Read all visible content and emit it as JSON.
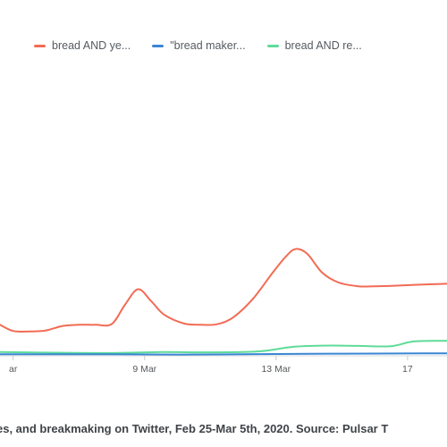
{
  "legend": [
    {
      "label": "bread AND ye...",
      "color": "#f26b54"
    },
    {
      "label": "\"bread maker...",
      "color": "#3a86d4"
    },
    {
      "label": "bread AND re...",
      "color": "#5fdb98"
    }
  ],
  "caption": "es, and breakmaking on Twitter, Feb 25-Mar 5th, 2020. Source: Pulsar T",
  "chart_data": {
    "type": "line",
    "x_tick_labels": [
      "ar",
      "9 Mar",
      "13 Mar",
      "17"
    ],
    "x_range_days": [
      4.6,
      18.2
    ],
    "x_ticks_days": [
      5,
      9,
      13,
      17
    ],
    "ylim": [
      0,
      100
    ],
    "grid": false,
    "legend_position": "top-left",
    "series": [
      {
        "name": "bread AND ye...",
        "color": "#f26b54",
        "points": [
          [
            4.6,
            12.5
          ],
          [
            5.0,
            10.0
          ],
          [
            5.5,
            9.8
          ],
          [
            6.0,
            10.2
          ],
          [
            6.5,
            12.0
          ],
          [
            7.0,
            12.5
          ],
          [
            7.5,
            12.5
          ],
          [
            8.0,
            12.8
          ],
          [
            8.4,
            20.5
          ],
          [
            8.8,
            26.8
          ],
          [
            9.2,
            22.0
          ],
          [
            9.6,
            16.5
          ],
          [
            10.2,
            13.0
          ],
          [
            10.7,
            12.5
          ],
          [
            11.2,
            12.7
          ],
          [
            11.7,
            15.5
          ],
          [
            12.3,
            23.0
          ],
          [
            12.9,
            33.5
          ],
          [
            13.3,
            40.0
          ],
          [
            13.6,
            43.0
          ],
          [
            13.95,
            41.0
          ],
          [
            14.4,
            33.5
          ],
          [
            14.9,
            29.5
          ],
          [
            15.5,
            28.0
          ],
          [
            16.0,
            28.0
          ],
          [
            16.6,
            28.2
          ],
          [
            17.3,
            28.6
          ],
          [
            18.2,
            29.0
          ]
        ]
      },
      {
        "name": "\"bread maker...",
        "color": "#3a86d4",
        "points": [
          [
            4.6,
            0.6
          ],
          [
            6.0,
            0.6
          ],
          [
            8.0,
            0.6
          ],
          [
            10.0,
            0.5
          ],
          [
            12.0,
            0.6
          ],
          [
            14.0,
            0.8
          ],
          [
            16.0,
            0.9
          ],
          [
            17.5,
            1.0
          ],
          [
            18.2,
            1.0
          ]
        ]
      },
      {
        "name": "bread AND re...",
        "color": "#5fdb98",
        "points": [
          [
            4.6,
            1.5
          ],
          [
            6.0,
            1.3
          ],
          [
            8.0,
            1.1
          ],
          [
            9.5,
            1.5
          ],
          [
            11.0,
            1.4
          ],
          [
            12.5,
            1.8
          ],
          [
            13.5,
            3.6
          ],
          [
            14.5,
            4.1
          ],
          [
            15.5,
            4.0
          ],
          [
            16.5,
            3.9
          ],
          [
            17.2,
            5.8
          ],
          [
            18.2,
            6.0
          ]
        ]
      }
    ]
  }
}
